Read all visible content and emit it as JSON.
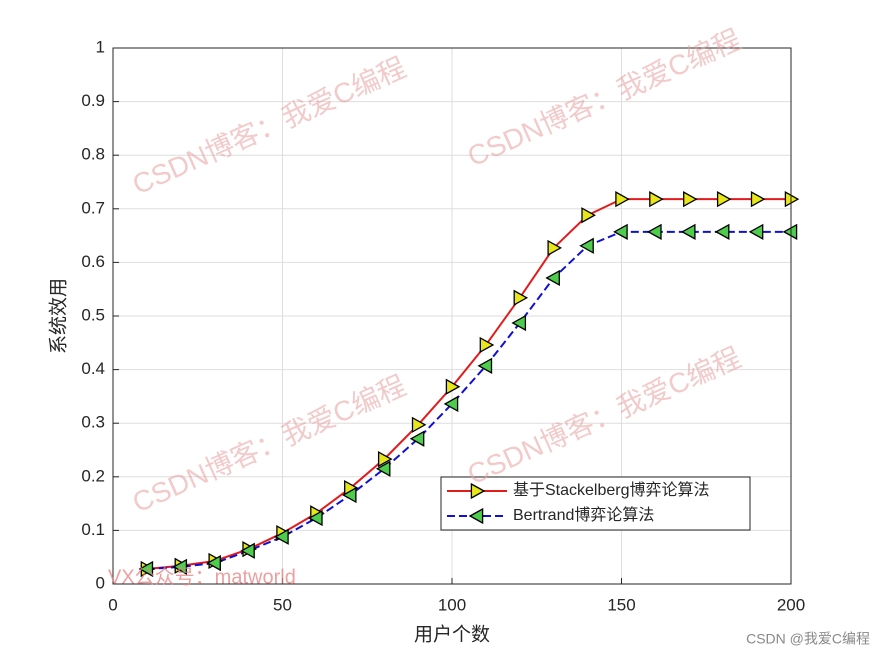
{
  "chart_data": {
    "type": "line",
    "xlabel": "用户个数",
    "ylabel": "系统效用",
    "x": [
      10,
      20,
      30,
      40,
      50,
      60,
      70,
      80,
      90,
      100,
      110,
      120,
      130,
      140,
      150,
      160,
      170,
      180,
      190,
      200
    ],
    "series": [
      {
        "name": "基于Stackelberg博弈论算法",
        "color": "#e41a1c",
        "marker": "triangle-right",
        "marker_color": "#e6e619",
        "linestyle": "solid",
        "values": [
          0.028,
          0.034,
          0.043,
          0.065,
          0.095,
          0.132,
          0.179,
          0.233,
          0.297,
          0.368,
          0.446,
          0.534,
          0.627,
          0.688,
          0.718,
          0.718,
          0.718,
          0.718,
          0.718,
          0.718
        ]
      },
      {
        "name": "Bertrand博弈论算法",
        "color": "#1010d0",
        "marker": "triangle-left",
        "marker_color": "#4dcc4d",
        "linestyle": "dashed",
        "values": [
          0.028,
          0.032,
          0.039,
          0.062,
          0.088,
          0.123,
          0.166,
          0.215,
          0.271,
          0.336,
          0.407,
          0.487,
          0.571,
          0.631,
          0.657,
          0.657,
          0.657,
          0.657,
          0.657,
          0.657
        ]
      }
    ],
    "xlim": [
      0,
      200
    ],
    "xticks": [
      0,
      50,
      100,
      150,
      200
    ],
    "ylim": [
      0,
      1
    ],
    "yticks": [
      0,
      0.1,
      0.2,
      0.3,
      0.4,
      0.5,
      0.6,
      0.7,
      0.8,
      0.9,
      1
    ],
    "grid": true,
    "legend": "lower right",
    "watermark": "CSDN博客：我爱C编程",
    "annotation": "VX公众号：matworld",
    "credit": "CSDN @我爱C编程"
  }
}
